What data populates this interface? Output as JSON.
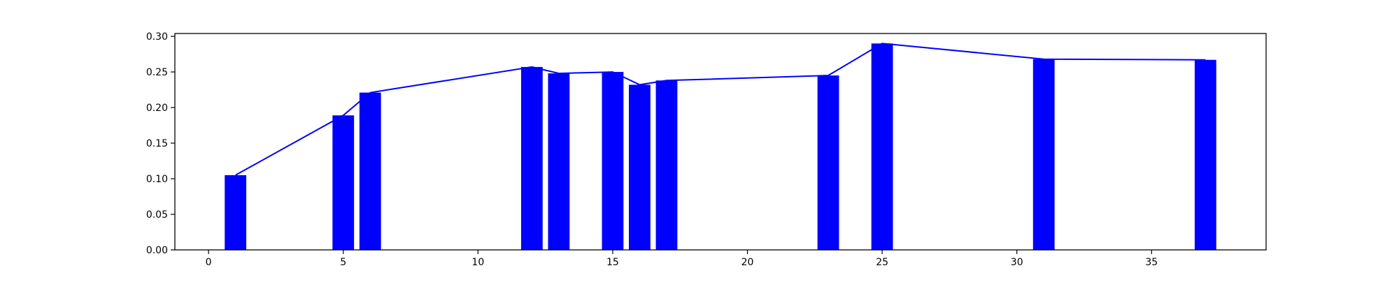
{
  "chart_data": {
    "type": "bar",
    "x": [
      1,
      5,
      6,
      12,
      13,
      15,
      16,
      17,
      23,
      25,
      31,
      37
    ],
    "values": [
      0.105,
      0.189,
      0.221,
      0.257,
      0.248,
      0.25,
      0.232,
      0.238,
      0.245,
      0.29,
      0.268,
      0.267
    ],
    "bar_width": 0.8,
    "overlay": "line",
    "color": "#0000ff",
    "axis_color": "#000000",
    "xlim": [
      -1.25,
      39.25
    ],
    "ylim": [
      0,
      0.304
    ],
    "x_ticks": [
      {
        "value": 0,
        "label": "0"
      },
      {
        "value": 5,
        "label": "5"
      },
      {
        "value": 10,
        "label": "10"
      },
      {
        "value": 15,
        "label": "15"
      },
      {
        "value": 20,
        "label": "20"
      },
      {
        "value": 25,
        "label": "25"
      },
      {
        "value": 30,
        "label": "30"
      },
      {
        "value": 35,
        "label": "35"
      }
    ],
    "y_ticks": [
      {
        "value": 0.0,
        "label": "0.00"
      },
      {
        "value": 0.05,
        "label": "0.05"
      },
      {
        "value": 0.1,
        "label": "0.10"
      },
      {
        "value": 0.15,
        "label": "0.15"
      },
      {
        "value": 0.2,
        "label": "0.20"
      },
      {
        "value": 0.25,
        "label": "0.25"
      },
      {
        "value": 0.3,
        "label": "0.30"
      }
    ],
    "grid": false,
    "title": "",
    "xlabel": "",
    "ylabel": ""
  }
}
